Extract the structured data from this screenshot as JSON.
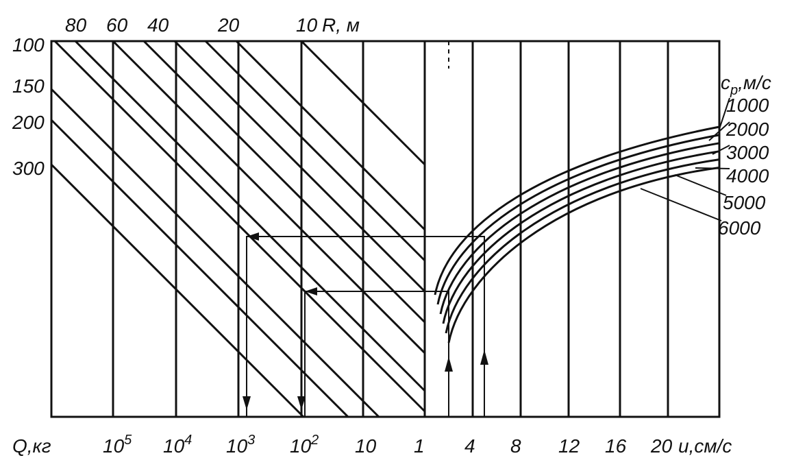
{
  "top_labels": [
    "80",
    "60",
    "40",
    "20",
    "10"
  ],
  "r_label": "R, м",
  "left_labels": [
    "100",
    "150",
    "200",
    "300"
  ],
  "speed_label": {
    "main": "c",
    "sub": "p",
    "unit": ",м/с"
  },
  "curve_labels": [
    "1000",
    "2000",
    "3000",
    "4000",
    "5000",
    "6000"
  ],
  "q_label": "Q,кг",
  "q_ticks": [
    {
      "base": "10",
      "exp": "5"
    },
    {
      "base": "10",
      "exp": "4"
    },
    {
      "base": "10",
      "exp": "3"
    },
    {
      "base": "10",
      "exp": "2"
    },
    "10",
    "1"
  ],
  "u_ticks": [
    "4",
    "8",
    "12",
    "16",
    "20"
  ],
  "u_label": "u,см/с"
}
